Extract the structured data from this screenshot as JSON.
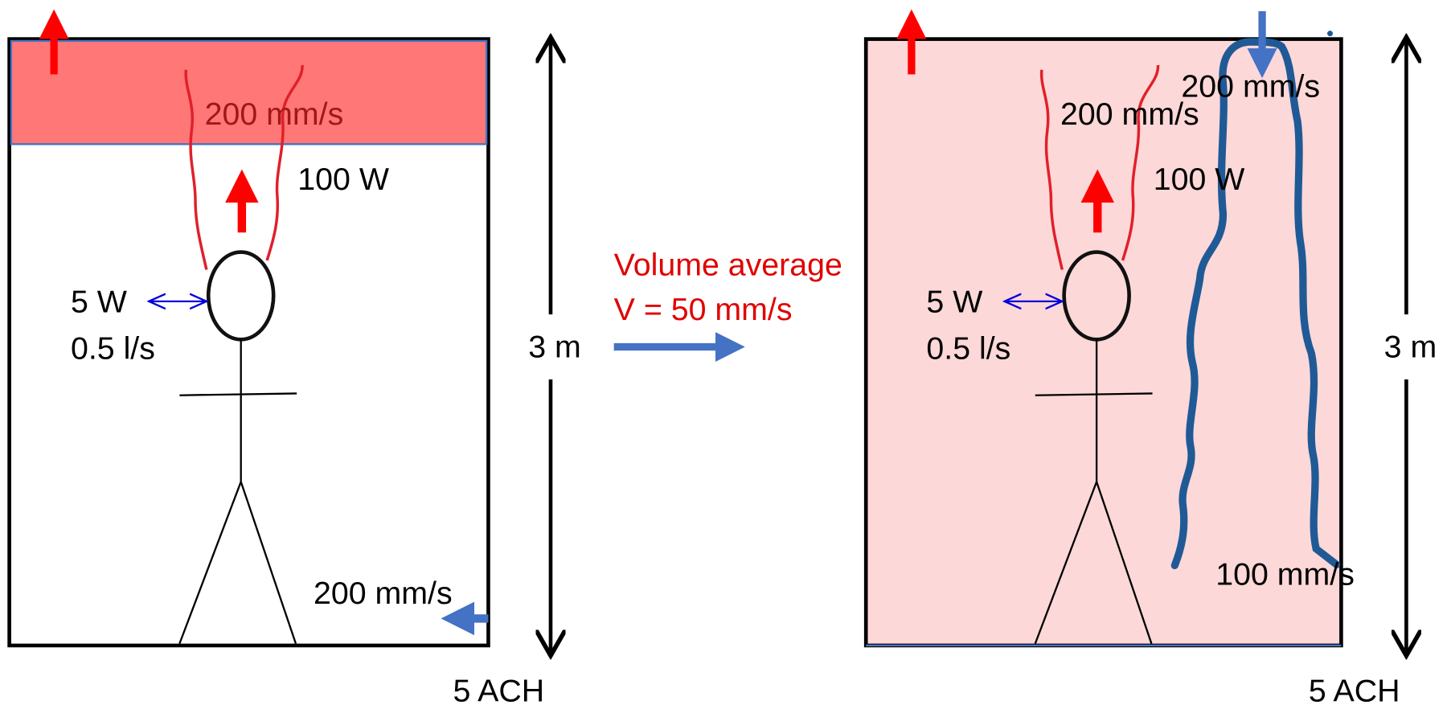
{
  "left": {
    "top_speed": "200 mm/s",
    "heat": "100 W",
    "breath_power": "5 W",
    "breath_flow": "0.5 l/s",
    "height": "3 m",
    "inlet_speed": "200 mm/s",
    "ach": "5 ACH"
  },
  "middle": {
    "line1": "Volume average",
    "line2": "V = 50 mm/s"
  },
  "right": {
    "top_speed": "200 mm/s",
    "plume_speed": "200 mm/s",
    "heat": "100 W",
    "breath_power": "5 W",
    "breath_flow": "0.5 l/s",
    "height": "3 m",
    "bottom_speed": "100 mm/s",
    "ach": "5 ACH"
  }
}
